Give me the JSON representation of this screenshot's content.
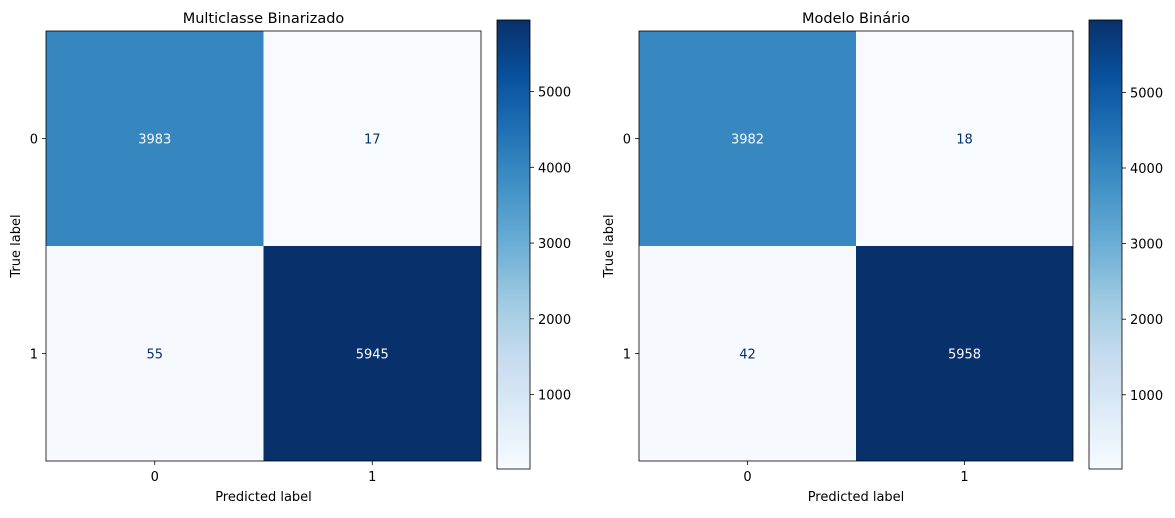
{
  "chart_data": [
    {
      "type": "heatmap",
      "title": "Multiclasse Binarizado",
      "xlabel": "Predicted label",
      "ylabel": "True label",
      "x_ticks": [
        "0",
        "1"
      ],
      "y_ticks": [
        "0",
        "1"
      ],
      "matrix": [
        [
          3983,
          17
        ],
        [
          55,
          5945
        ]
      ],
      "colormap": "Blues",
      "colorbar_range": [
        17,
        5945
      ],
      "colorbar_ticks": [
        1000,
        2000,
        3000,
        4000,
        5000
      ]
    },
    {
      "type": "heatmap",
      "title": "Modelo Binário",
      "xlabel": "Predicted label",
      "ylabel": "True label",
      "x_ticks": [
        "0",
        "1"
      ],
      "y_ticks": [
        "0",
        "1"
      ],
      "matrix": [
        [
          3982,
          18
        ],
        [
          42,
          5958
        ]
      ],
      "colormap": "Blues",
      "colorbar_range": [
        18,
        5958
      ],
      "colorbar_ticks": [
        1000,
        2000,
        3000,
        4000,
        5000
      ]
    }
  ]
}
